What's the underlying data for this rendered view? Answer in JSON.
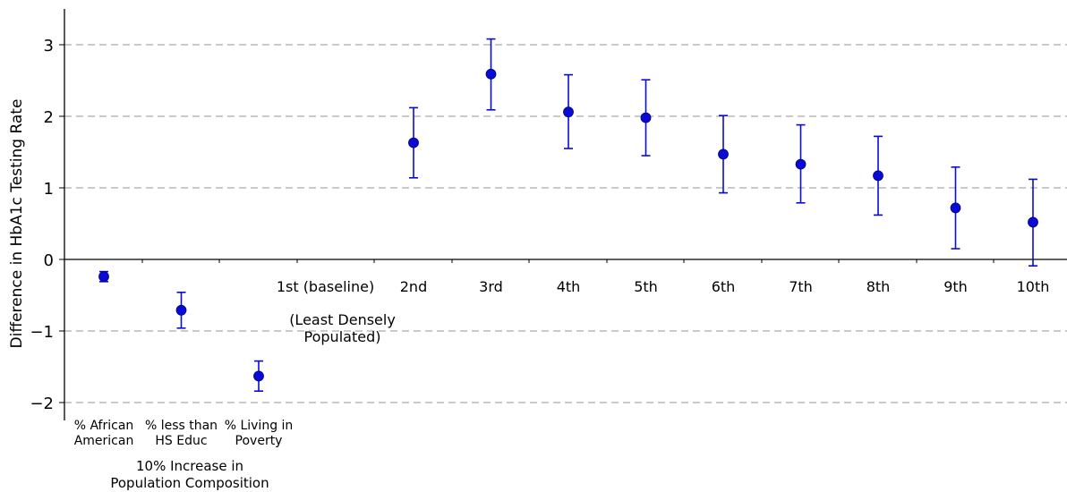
{
  "chart_data": {
    "type": "scatter",
    "ylabel": "Difference in HbA1c Testing Rate",
    "ylim": [
      -2.2,
      3.5
    ],
    "yticks": [
      3,
      2,
      1,
      0,
      -1,
      -2
    ],
    "ytick_labels": [
      "3",
      "2",
      "1",
      "0",
      "−1",
      "−2"
    ],
    "grid": "horizontal dashed",
    "marker_color": "#0a0ad6",
    "categories": [
      {
        "label": [
          "% African",
          "American"
        ],
        "value": -0.24,
        "lower": -0.31,
        "upper": -0.17
      },
      {
        "label": [
          "% less than",
          "HS Educ"
        ],
        "value": -0.71,
        "lower": -0.96,
        "upper": -0.46
      },
      {
        "label": [
          "% Living in",
          "Poverty"
        ],
        "value": -1.63,
        "lower": -1.84,
        "upper": -1.42
      },
      {
        "label": [
          "1st (baseline)"
        ],
        "value": null,
        "lower": null,
        "upper": null
      },
      {
        "label": [
          "2nd"
        ],
        "value": 1.63,
        "lower": 1.14,
        "upper": 2.12
      },
      {
        "label": [
          "3rd"
        ],
        "value": 2.59,
        "lower": 2.09,
        "upper": 3.08
      },
      {
        "label": [
          "4th"
        ],
        "value": 2.06,
        "lower": 1.55,
        "upper": 2.58
      },
      {
        "label": [
          "5th"
        ],
        "value": 1.98,
        "lower": 1.45,
        "upper": 2.51
      },
      {
        "label": [
          "6th"
        ],
        "value": 1.47,
        "lower": 0.93,
        "upper": 2.01
      },
      {
        "label": [
          "7th"
        ],
        "value": 1.33,
        "lower": 0.79,
        "upper": 1.88
      },
      {
        "label": [
          "8th"
        ],
        "value": 1.17,
        "lower": 0.62,
        "upper": 1.72
      },
      {
        "label": [
          "9th"
        ],
        "value": 0.72,
        "lower": 0.15,
        "upper": 1.29
      },
      {
        "label": [
          "10th"
        ],
        "value": 0.52,
        "lower": -0.09,
        "upper": 1.12
      }
    ],
    "annotations": [
      {
        "lines": [
          "(Least Densely",
          "Populated)"
        ],
        "category": 3
      },
      {
        "lines": [
          "10% Increase in",
          "Population Composition"
        ],
        "category": 1
      }
    ]
  }
}
